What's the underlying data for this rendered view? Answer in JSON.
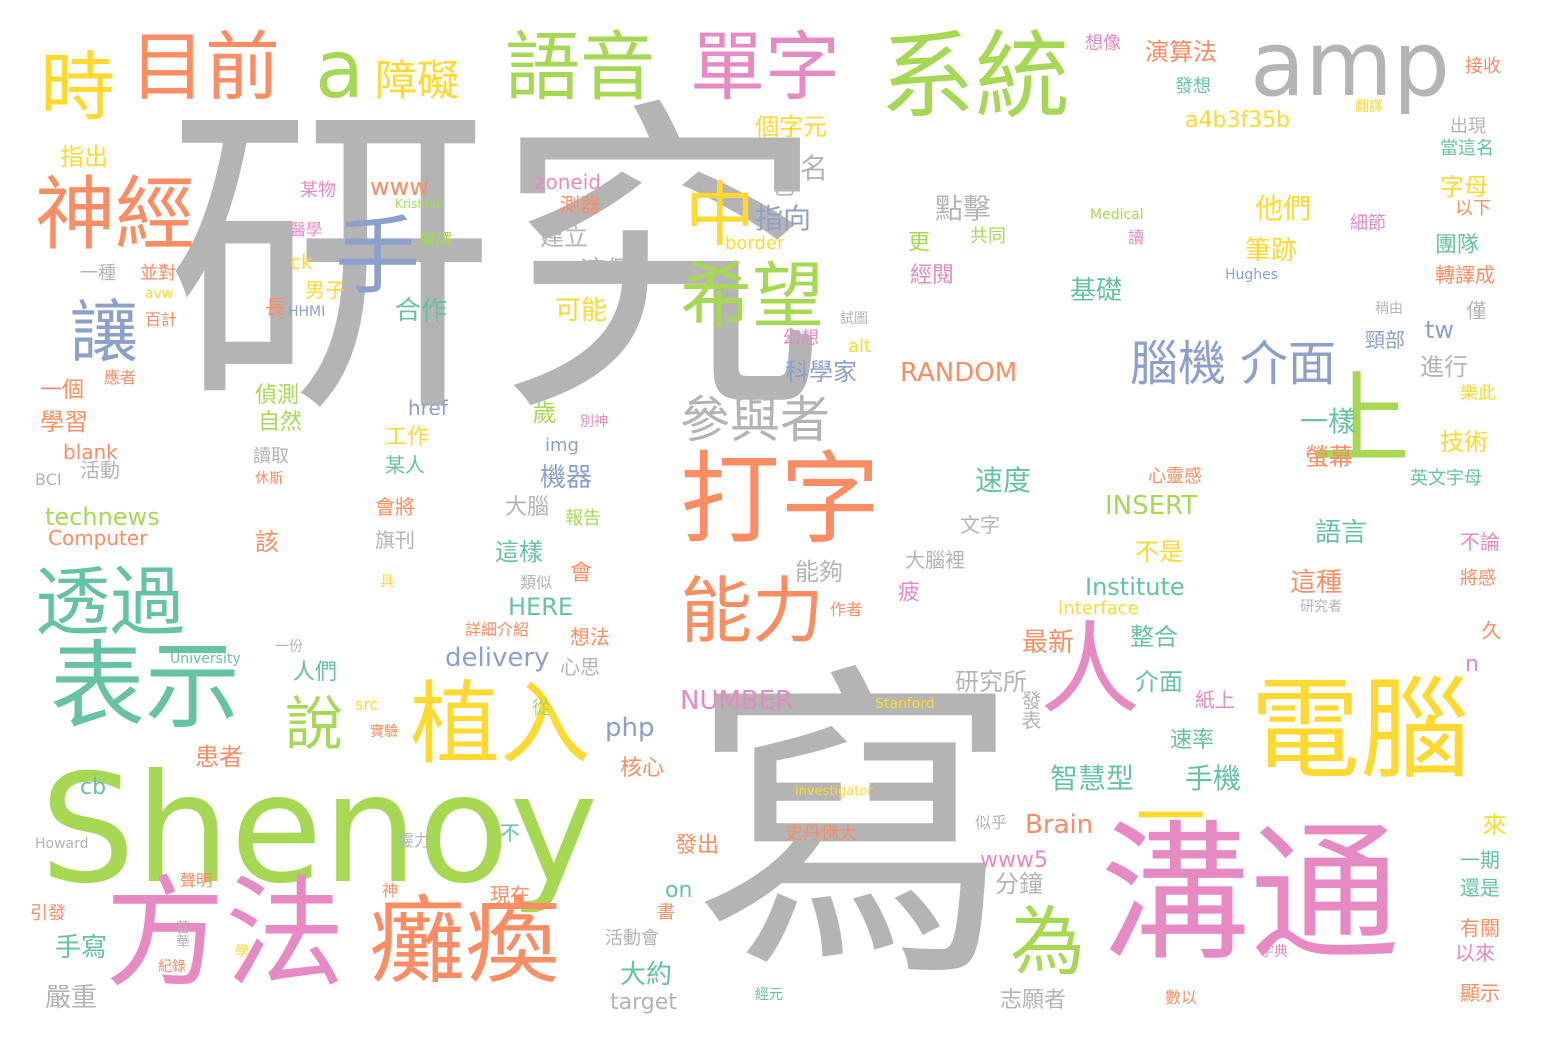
{
  "palette": {
    "gray": "#b4b4b4",
    "green": "#a6d854",
    "pink": "#e78ac3",
    "orange": "#fc8d62",
    "teal": "#66c2a5",
    "blue": "#8da0cb",
    "yellow": "#ffd92f",
    "tan": "#e5c494"
  },
  "words": [
    "研究",
    "寫",
    "溝通",
    "Shenoy",
    "方法",
    "癱瘓",
    "電腦",
    "打字",
    "表示",
    "系統",
    "amp",
    "語音",
    "單字",
    "目前",
    "a",
    "時",
    "神經",
    "手",
    "中",
    "希望",
    "上",
    "人",
    "植入",
    "能力",
    "透過",
    "讓",
    "為",
    "說",
    "參與者",
    "障礙",
    "腦機",
    "介面",
    "一",
    "個字元",
    "a4b3f35b",
    "演算法",
    "想像",
    "發想",
    "接收",
    "翻譯",
    "出現",
    "當這名",
    "指出",
    "某物",
    "www",
    "zoneid",
    "Krishna",
    "醫學",
    "解譯",
    "建立",
    "測器",
    "已",
    "名",
    "點擊",
    "指向",
    "他們",
    "細節",
    "字母",
    "以下",
    "Medical",
    "border",
    "共同",
    "讀",
    "更",
    "一種",
    "並對",
    "ck",
    "經閱",
    "轉譯成",
    "團隊",
    "Hughes",
    "avw",
    "男子",
    "長",
    "HHMI",
    "這個",
    "基礎",
    "筆跡",
    "百計",
    "稍由",
    "試圖",
    "僅",
    "合作",
    "可能",
    "tw",
    "幻想",
    "alt",
    "頸部",
    "應者",
    "科學家",
    "RANDOM",
    "進行",
    "樂此",
    "一個",
    "偵測",
    "href",
    "學習",
    "自然",
    "工作",
    "一樣",
    "別神",
    "img",
    "歲",
    "技術",
    "blank",
    "讀取",
    "BCI",
    "活動",
    "某人",
    "休斯",
    "機器",
    "心靈感",
    "英文宇母",
    "technews",
    "Computer",
    "會將",
    "報告",
    "大腦",
    "速度",
    "INSERT",
    "螢幕",
    "該",
    "旗刊",
    "具",
    "文字",
    "語言",
    "不論",
    "這樣",
    "會",
    "不是",
    "類似",
    "大腦裡",
    "能夠",
    "將感",
    "HERE",
    "想法",
    "詳細介紹",
    "Institute",
    "這種",
    "University",
    "Interface",
    "作者",
    "疲",
    "研究者",
    "一份",
    "delivery",
    "心思",
    "最新",
    "整合",
    "人們",
    "研究所",
    "久",
    "n",
    "NUMBER",
    "從",
    "src",
    "php",
    "實驗",
    "Stanford",
    "紙上",
    "介面",
    "發表",
    "患者",
    "核心",
    "cb",
    "速率",
    "手機",
    "智慧型",
    "investigator",
    "Howard",
    "不",
    "靈力",
    "Brain",
    "史丹佛大",
    "似乎",
    "發出",
    "來",
    "www5",
    "聲明",
    "一期",
    "on",
    "分鐘",
    "神",
    "現在",
    "還是",
    "引發",
    "書",
    "有關",
    "手寫",
    "活動會",
    "芸華",
    "學",
    "字典",
    "以來",
    "紀錄",
    "大約",
    "嚴重",
    "經元",
    "target",
    "志願者",
    "數以",
    "顯示"
  ]
}
